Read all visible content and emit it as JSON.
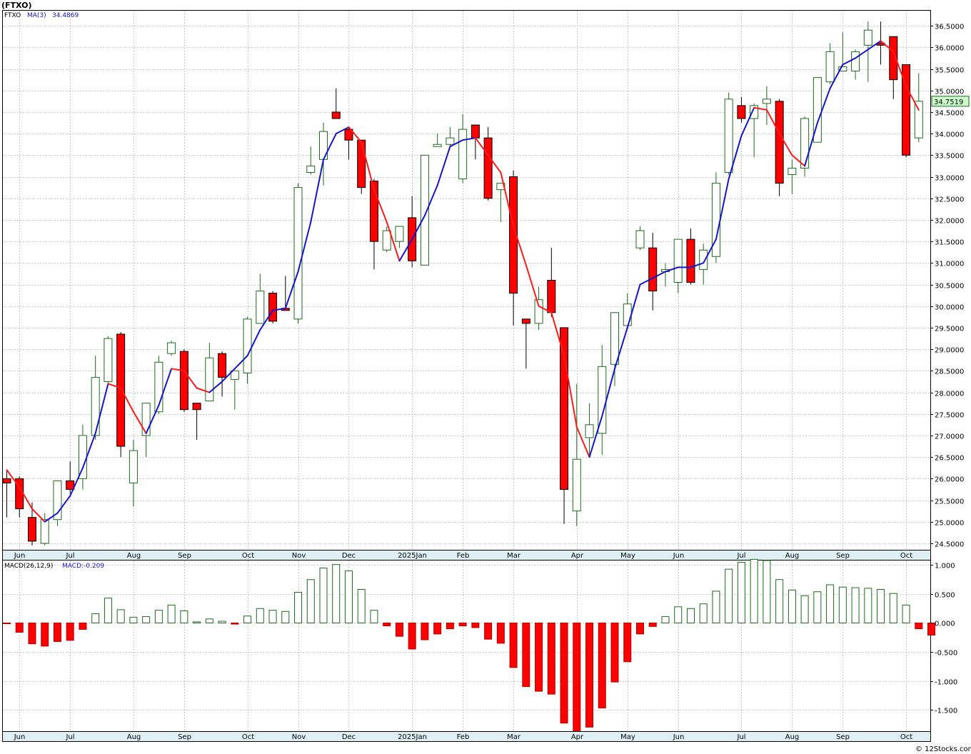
{
  "header": {
    "title": "(FTXO)",
    "symbol_label": "FTXO",
    "ma_label": "MA(3)",
    "ma_value": "34.4869",
    "macd_label": "MACD(26,12,9)",
    "macd_value": "MACD:-0.209",
    "current_price": "34.7519",
    "watermark": "© 12Stocks.com"
  },
  "colors": {
    "up": "#1e6a1e",
    "down": "#ff0000",
    "ma_up": "#1515d0",
    "ma_down": "#ff1a1a",
    "grid": "#c8c8c8",
    "price_box": "#ccffcc"
  },
  "chart_data": [
    {
      "type": "candlestick",
      "title": "(FTXO)",
      "ylim": [
        24.35,
        36.85
      ],
      "yticks": [
        "36.5000",
        "36.0000",
        "35.5000",
        "35.0000",
        "34.5000",
        "34.0000",
        "33.5000",
        "33.0000",
        "32.5000",
        "32.0000",
        "31.5000",
        "31.0000",
        "30.5000",
        "30.0000",
        "29.5000",
        "29.0000",
        "28.5000",
        "28.0000",
        "27.5000",
        "27.0000",
        "26.5000",
        "26.0000",
        "25.5000",
        "25.0000",
        "24.5000"
      ],
      "xtick_labels": [
        "Jun",
        "Jul",
        "Aug",
        "Sep",
        "Oct",
        "Nov",
        "Dec",
        "2025Jan",
        "Feb",
        "Mar",
        "Apr",
        "May",
        "Jun",
        "Jul",
        "Aug",
        "Sep",
        "Oct"
      ],
      "xtick_index": [
        1,
        5,
        10,
        14,
        19,
        23,
        27,
        32,
        36,
        40,
        45,
        49,
        53,
        58,
        62,
        66,
        71
      ],
      "candles": [
        {
          "o": 26.0,
          "h": 26.2,
          "l": 25.1,
          "c": 25.9
        },
        {
          "o": 26.0,
          "h": 26.05,
          "l": 25.1,
          "c": 25.3
        },
        {
          "o": 25.1,
          "h": 25.45,
          "l": 24.45,
          "c": 24.55
        },
        {
          "o": 24.5,
          "h": 25.2,
          "l": 24.45,
          "c": 25.05
        },
        {
          "o": 25.05,
          "h": 25.95,
          "l": 24.9,
          "c": 25.95
        },
        {
          "o": 25.95,
          "h": 26.4,
          "l": 25.65,
          "c": 25.75
        },
        {
          "o": 26.0,
          "h": 27.25,
          "l": 25.75,
          "c": 27.0
        },
        {
          "o": 27.0,
          "h": 28.85,
          "l": 26.9,
          "c": 28.35
        },
        {
          "o": 28.25,
          "h": 29.3,
          "l": 28.2,
          "c": 29.25
        },
        {
          "o": 29.35,
          "h": 29.4,
          "l": 26.5,
          "c": 26.75
        },
        {
          "o": 25.9,
          "h": 26.9,
          "l": 25.35,
          "c": 26.65
        },
        {
          "o": 27.0,
          "h": 27.75,
          "l": 26.5,
          "c": 27.75
        },
        {
          "o": 27.55,
          "h": 28.85,
          "l": 27.5,
          "c": 28.7
        },
        {
          "o": 28.9,
          "h": 29.2,
          "l": 28.85,
          "c": 29.15
        },
        {
          "o": 28.95,
          "h": 29.0,
          "l": 27.55,
          "c": 27.6
        },
        {
          "o": 27.75,
          "h": 27.75,
          "l": 26.9,
          "c": 27.6
        },
        {
          "o": 27.8,
          "h": 29.15,
          "l": 27.8,
          "c": 28.8
        },
        {
          "o": 28.9,
          "h": 28.95,
          "l": 27.9,
          "c": 28.35
        },
        {
          "o": 28.3,
          "h": 28.5,
          "l": 27.6,
          "c": 28.5
        },
        {
          "o": 28.45,
          "h": 29.75,
          "l": 28.2,
          "c": 29.7
        },
        {
          "o": 29.6,
          "h": 30.75,
          "l": 29.6,
          "c": 30.35
        },
        {
          "o": 30.3,
          "h": 30.35,
          "l": 29.6,
          "c": 29.65
        },
        {
          "o": 29.95,
          "h": 30.7,
          "l": 29.9,
          "c": 29.9
        },
        {
          "o": 29.7,
          "h": 32.85,
          "l": 29.6,
          "c": 32.75
        },
        {
          "o": 33.1,
          "h": 33.7,
          "l": 33.05,
          "c": 33.25
        },
        {
          "o": 33.4,
          "h": 34.25,
          "l": 32.8,
          "c": 34.05
        },
        {
          "o": 34.5,
          "h": 35.05,
          "l": 34.35,
          "c": 34.35
        },
        {
          "o": 34.1,
          "h": 34.15,
          "l": 33.4,
          "c": 33.85
        },
        {
          "o": 33.85,
          "h": 33.85,
          "l": 32.6,
          "c": 32.75
        },
        {
          "o": 32.9,
          "h": 32.95,
          "l": 30.85,
          "c": 31.5
        },
        {
          "o": 31.3,
          "h": 31.85,
          "l": 31.25,
          "c": 31.75
        },
        {
          "o": 31.5,
          "h": 31.85,
          "l": 31.35,
          "c": 31.85
        },
        {
          "o": 32.05,
          "h": 32.55,
          "l": 30.9,
          "c": 31.05
        },
        {
          "o": 30.95,
          "h": 33.5,
          "l": 30.95,
          "c": 33.5
        },
        {
          "o": 33.7,
          "h": 34.0,
          "l": 33.7,
          "c": 33.75
        },
        {
          "o": 33.75,
          "h": 34.15,
          "l": 33.7,
          "c": 33.9
        },
        {
          "o": 32.95,
          "h": 34.45,
          "l": 32.85,
          "c": 34.1
        },
        {
          "o": 34.2,
          "h": 34.2,
          "l": 33.4,
          "c": 33.9
        },
        {
          "o": 33.9,
          "h": 34.15,
          "l": 32.45,
          "c": 32.5
        },
        {
          "o": 32.7,
          "h": 32.85,
          "l": 31.95,
          "c": 32.85
        },
        {
          "o": 33.0,
          "h": 33.15,
          "l": 29.55,
          "c": 30.3
        },
        {
          "o": 29.7,
          "h": 29.7,
          "l": 28.55,
          "c": 29.6
        },
        {
          "o": 29.6,
          "h": 30.45,
          "l": 29.45,
          "c": 30.15
        },
        {
          "o": 30.6,
          "h": 31.35,
          "l": 29.75,
          "c": 29.85
        },
        {
          "o": 29.5,
          "h": 29.5,
          "l": 24.95,
          "c": 25.75
        },
        {
          "o": 25.25,
          "h": 28.2,
          "l": 24.9,
          "c": 26.45
        },
        {
          "o": 26.95,
          "h": 27.75,
          "l": 26.5,
          "c": 27.25
        },
        {
          "o": 27.05,
          "h": 29.1,
          "l": 26.55,
          "c": 28.6
        },
        {
          "o": 28.65,
          "h": 29.85,
          "l": 28.15,
          "c": 29.85
        },
        {
          "o": 29.55,
          "h": 30.3,
          "l": 29.55,
          "c": 30.05
        },
        {
          "o": 31.35,
          "h": 31.85,
          "l": 31.3,
          "c": 31.75
        },
        {
          "o": 31.35,
          "h": 31.7,
          "l": 29.9,
          "c": 30.35
        },
        {
          "o": 30.8,
          "h": 31.0,
          "l": 30.45,
          "c": 30.85
        },
        {
          "o": 30.55,
          "h": 31.55,
          "l": 30.3,
          "c": 31.55
        },
        {
          "o": 31.55,
          "h": 31.8,
          "l": 30.5,
          "c": 30.55
        },
        {
          "o": 30.85,
          "h": 31.45,
          "l": 30.5,
          "c": 31.3
        },
        {
          "o": 31.15,
          "h": 33.1,
          "l": 31.0,
          "c": 32.85
        },
        {
          "o": 33.1,
          "h": 34.95,
          "l": 33.05,
          "c": 34.8
        },
        {
          "o": 34.65,
          "h": 34.85,
          "l": 34.25,
          "c": 34.35
        },
        {
          "o": 34.35,
          "h": 34.7,
          "l": 33.45,
          "c": 34.65
        },
        {
          "o": 34.7,
          "h": 35.1,
          "l": 34.2,
          "c": 34.8
        },
        {
          "o": 34.75,
          "h": 34.8,
          "l": 32.55,
          "c": 32.85
        },
        {
          "o": 33.05,
          "h": 33.4,
          "l": 32.6,
          "c": 33.2
        },
        {
          "o": 33.2,
          "h": 34.4,
          "l": 33.0,
          "c": 34.35
        },
        {
          "o": 33.8,
          "h": 35.3,
          "l": 33.8,
          "c": 35.3
        },
        {
          "o": 35.2,
          "h": 36.1,
          "l": 35.15,
          "c": 35.9
        },
        {
          "o": 35.45,
          "h": 36.35,
          "l": 35.45,
          "c": 35.55
        },
        {
          "o": 35.45,
          "h": 35.95,
          "l": 35.25,
          "c": 35.9
        },
        {
          "o": 36.05,
          "h": 36.6,
          "l": 35.2,
          "c": 36.4
        },
        {
          "o": 36.1,
          "h": 36.6,
          "l": 35.6,
          "c": 36.05
        },
        {
          "o": 36.25,
          "h": 36.25,
          "l": 34.8,
          "c": 35.25
        },
        {
          "o": 35.6,
          "h": 35.6,
          "l": 33.45,
          "c": 33.5
        },
        {
          "o": 33.9,
          "h": 35.4,
          "l": 33.8,
          "c": 34.75
        }
      ],
      "ma": [
        26.2,
        25.8,
        25.3,
        25.0,
        25.2,
        25.6,
        26.25,
        27.05,
        28.2,
        28.1,
        27.55,
        27.05,
        27.7,
        28.55,
        28.5,
        28.1,
        28.0,
        28.25,
        28.55,
        28.85,
        29.45,
        29.9,
        29.95,
        30.8,
        31.95,
        33.4,
        34.0,
        34.15,
        33.8,
        32.7,
        31.95,
        31.05,
        31.55,
        32.1,
        32.8,
        33.7,
        33.85,
        33.9,
        33.5,
        33.1,
        31.85,
        30.95,
        30.0,
        29.85,
        28.85,
        27.2,
        26.5,
        27.45,
        28.55,
        29.5,
        30.5,
        30.65,
        30.8,
        30.9,
        30.9,
        31.0,
        31.55,
        32.95,
        33.95,
        34.6,
        34.55,
        34.0,
        33.5,
        33.25,
        34.25,
        35.05,
        35.6,
        35.75,
        35.95,
        36.15,
        35.9,
        35.1,
        34.55
      ]
    },
    {
      "type": "bar",
      "title": "MACD(26,12,9)",
      "ylim": [
        -1.87,
        1.08
      ],
      "yticks": [
        "1.000",
        "0.500",
        "0.000",
        "-0.500",
        "-1.000",
        "-1.500"
      ],
      "xtick_labels": [
        "Jun",
        "Jul",
        "Aug",
        "Sep",
        "Oct",
        "Nov",
        "Dec",
        "2025Jan",
        "Feb",
        "Mar",
        "Apr",
        "May",
        "Jun",
        "Jul",
        "Aug",
        "Sep",
        "Oct"
      ],
      "values": [
        -0.01,
        -0.16,
        -0.36,
        -0.4,
        -0.32,
        -0.3,
        -0.11,
        0.16,
        0.43,
        0.23,
        0.1,
        0.11,
        0.22,
        0.31,
        0.21,
        0.02,
        0.07,
        0.03,
        -0.02,
        0.12,
        0.25,
        0.22,
        0.2,
        0.53,
        0.75,
        0.95,
        1.01,
        0.9,
        0.58,
        0.22,
        -0.05,
        -0.23,
        -0.45,
        -0.29,
        -0.19,
        -0.1,
        -0.05,
        -0.08,
        -0.28,
        -0.35,
        -0.77,
        -1.1,
        -1.18,
        -1.23,
        -1.73,
        -1.88,
        -1.8,
        -1.47,
        -1.02,
        -0.67,
        -0.19,
        -0.06,
        0.11,
        0.28,
        0.25,
        0.33,
        0.55,
        0.93,
        1.05,
        1.1,
        1.08,
        0.75,
        0.57,
        0.47,
        0.54,
        0.66,
        0.62,
        0.61,
        0.6,
        0.58,
        0.51,
        0.31,
        -0.1,
        -0.21
      ]
    }
  ]
}
